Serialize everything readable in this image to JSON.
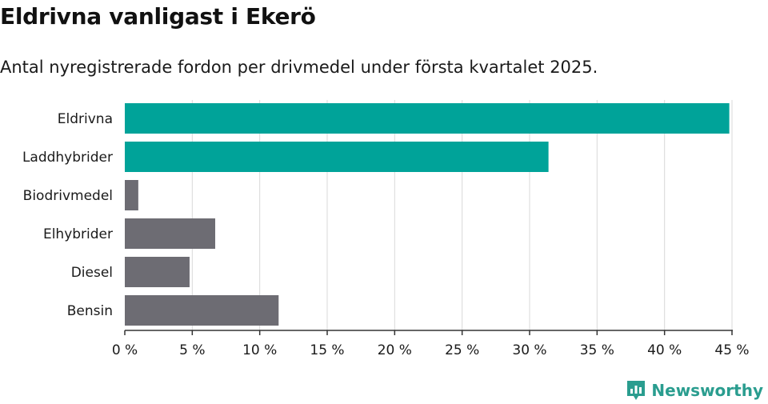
{
  "title": "Eldrivna vanligast i Ekerö",
  "subtitle": "Antal nyregistrerade fordon per drivmedel under första kvartalet 2025.",
  "brand": {
    "name": "Newsworthy",
    "icon": "newsworthy-logo-icon",
    "color": "#2a9d8f"
  },
  "colors": {
    "highlight": "#00a399",
    "default": "#6d6c73",
    "grid": "#d9d9d9",
    "axis": "#333333"
  },
  "chart_data": {
    "type": "bar",
    "orientation": "horizontal",
    "categories": [
      "Eldrivna",
      "Laddhybrider",
      "Biodrivmedel",
      "Elhybrider",
      "Diesel",
      "Bensin"
    ],
    "values": [
      44.8,
      31.4,
      1.0,
      6.7,
      4.8,
      11.4
    ],
    "highlighted": [
      "Eldrivna",
      "Laddhybrider"
    ],
    "xlim": [
      0,
      45
    ],
    "xticks": [
      0,
      5,
      10,
      15,
      20,
      25,
      30,
      35,
      40,
      45
    ],
    "xtick_labels": [
      "0 %",
      "5 %",
      "10 %",
      "15 %",
      "20 %",
      "25 %",
      "30 %",
      "35 %",
      "40 %",
      "45 %"
    ],
    "grid": true,
    "xlabel": "",
    "ylabel": ""
  }
}
